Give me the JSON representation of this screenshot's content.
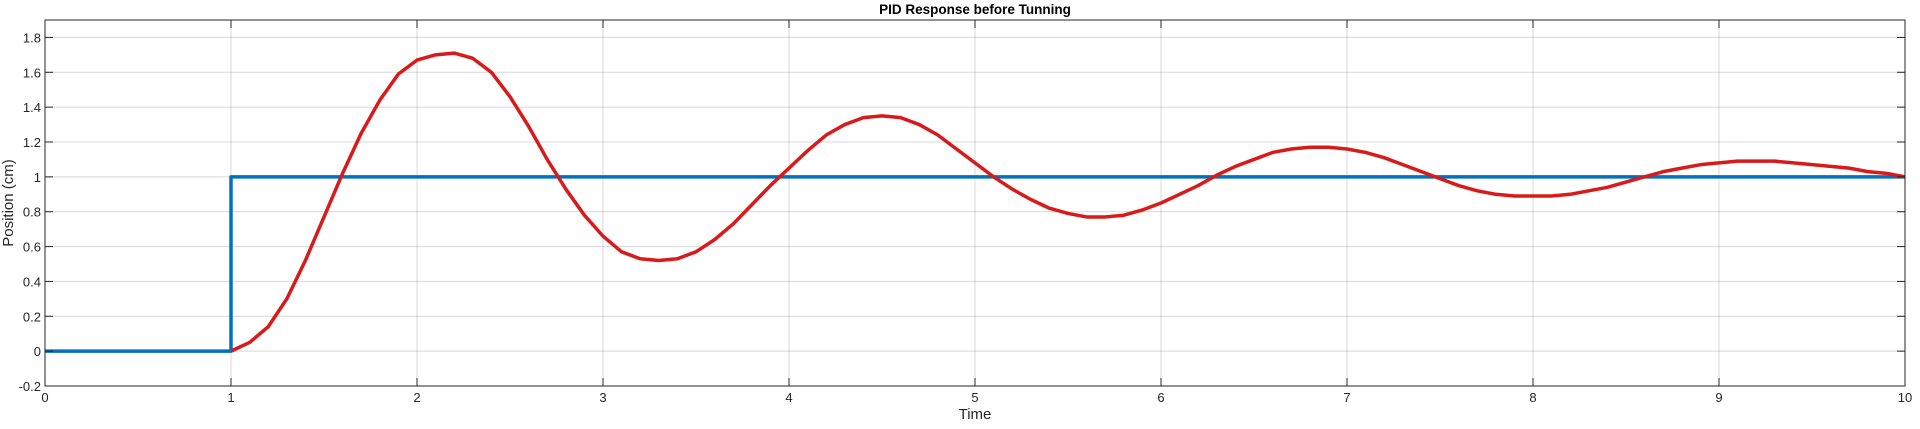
{
  "chart_data": {
    "type": "line",
    "title": "PID Response before Tunning",
    "xlabel": "Time",
    "ylabel": "Position (cm)",
    "xlim": [
      0,
      10
    ],
    "ylim": [
      -0.2,
      1.9
    ],
    "xticks": [
      0,
      1,
      2,
      3,
      4,
      5,
      6,
      7,
      8,
      9,
      10
    ],
    "yticks": [
      -0.2,
      0,
      0.2,
      0.4,
      0.6,
      0.8,
      1,
      1.2,
      1.4,
      1.6,
      1.8
    ],
    "grid": true,
    "series": [
      {
        "color": "#0072bd",
        "x": [
          0,
          1,
          1,
          10
        ],
        "y": [
          0,
          0,
          1,
          1
        ]
      },
      {
        "color": "#d91a1a",
        "x": [
          1.0,
          1.1,
          1.2,
          1.3,
          1.4,
          1.5,
          1.6,
          1.7,
          1.8,
          1.9,
          2.0,
          2.1,
          2.2,
          2.3,
          2.4,
          2.5,
          2.6,
          2.7,
          2.8,
          2.9,
          3.0,
          3.1,
          3.2,
          3.3,
          3.4,
          3.5,
          3.6,
          3.7,
          3.8,
          3.9,
          4.0,
          4.1,
          4.2,
          4.3,
          4.4,
          4.5,
          4.6,
          4.7,
          4.8,
          4.9,
          5.0,
          5.1,
          5.2,
          5.3,
          5.4,
          5.5,
          5.6,
          5.7,
          5.8,
          5.9,
          6.0,
          6.1,
          6.2,
          6.3,
          6.4,
          6.5,
          6.6,
          6.7,
          6.8,
          6.9,
          7.0,
          7.1,
          7.2,
          7.3,
          7.4,
          7.5,
          7.6,
          7.7,
          7.8,
          7.9,
          8.0,
          8.1,
          8.2,
          8.3,
          8.4,
          8.5,
          8.6,
          8.7,
          8.8,
          8.9,
          9.0,
          9.1,
          9.2,
          9.3,
          9.4,
          9.5,
          9.6,
          9.7,
          9.8,
          9.9,
          10.0
        ],
        "y": [
          0.0,
          0.05,
          0.14,
          0.3,
          0.52,
          0.77,
          1.02,
          1.25,
          1.44,
          1.59,
          1.67,
          1.7,
          1.71,
          1.68,
          1.6,
          1.46,
          1.29,
          1.1,
          0.93,
          0.78,
          0.66,
          0.57,
          0.53,
          0.52,
          0.53,
          0.57,
          0.64,
          0.73,
          0.84,
          0.95,
          1.05,
          1.15,
          1.24,
          1.3,
          1.34,
          1.35,
          1.34,
          1.3,
          1.24,
          1.16,
          1.08,
          1.0,
          0.93,
          0.87,
          0.82,
          0.79,
          0.77,
          0.77,
          0.78,
          0.81,
          0.85,
          0.9,
          0.95,
          1.01,
          1.06,
          1.1,
          1.14,
          1.16,
          1.17,
          1.17,
          1.16,
          1.14,
          1.11,
          1.07,
          1.03,
          0.99,
          0.95,
          0.92,
          0.9,
          0.89,
          0.89,
          0.89,
          0.9,
          0.92,
          0.94,
          0.97,
          1.0,
          1.03,
          1.05,
          1.07,
          1.08,
          1.09,
          1.09,
          1.09,
          1.08,
          1.07,
          1.06,
          1.05,
          1.03,
          1.02,
          1.0
        ]
      }
    ]
  }
}
